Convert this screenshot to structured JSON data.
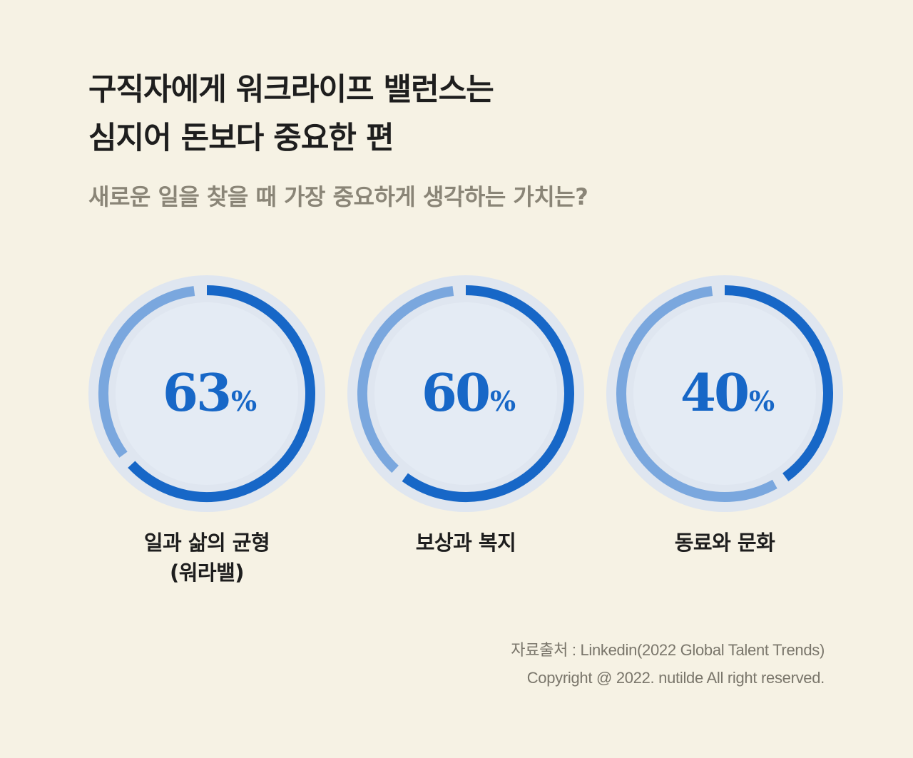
{
  "title": {
    "line1": "구직자에게 워크라이프 밸런스는",
    "line2": "심지어 돈보다 중요한 편"
  },
  "subtitle": "새로운 일을 찾을 때 가장 중요하게 생각하는 가치는?",
  "colors": {
    "background": "#f6f2e4",
    "disc": "#dfe6f0",
    "inner": "#e4ebf4",
    "track": "#7aa7de",
    "arc": "#1767c7",
    "value_text": "#1767c7"
  },
  "chart_data": {
    "type": "donut",
    "unit": "%",
    "max": 100,
    "items": [
      {
        "label_line1": "일과 삶의 균형",
        "label_line2": "(워라밸)",
        "value": 63,
        "display": "63"
      },
      {
        "label_line1": "보상과 복지",
        "label_line2": "",
        "value": 60,
        "display": "60"
      },
      {
        "label_line1": "동료와 문화",
        "label_line2": "",
        "value": 40,
        "display": "40"
      }
    ]
  },
  "source": {
    "line1": "자료출처 : Linkedin(2022 Global Talent Trends)",
    "line2": "Copyright @ 2022. nutilde All right reserved."
  }
}
